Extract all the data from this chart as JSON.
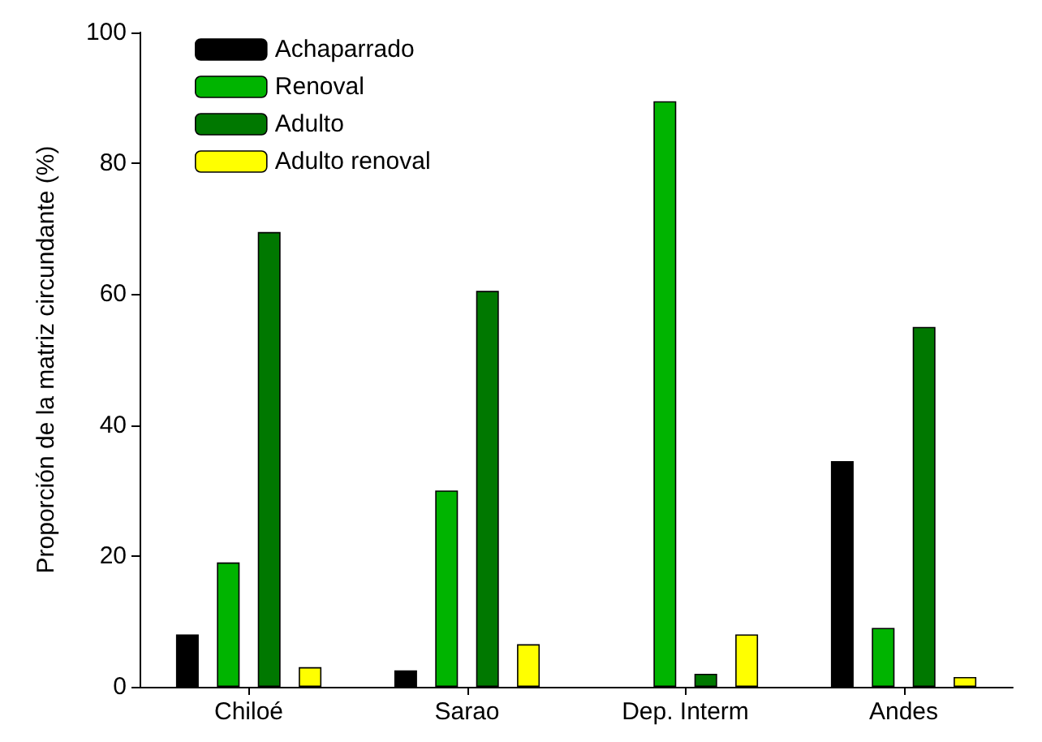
{
  "chart_data": {
    "type": "bar",
    "ylabel": "Proporción de la matriz circundante (%)",
    "categories": [
      "Chiloé",
      "Sarao",
      "Dep. Interm",
      "Andes"
    ],
    "series": [
      {
        "name": "Achaparrado",
        "color": "#000000",
        "values": [
          8,
          2.5,
          null,
          34.5
        ]
      },
      {
        "name": "Renoval",
        "color": "#00b400",
        "values": [
          19,
          30,
          89.5,
          9
        ]
      },
      {
        "name": "Adulto",
        "color": "#007800",
        "values": [
          69.5,
          60.5,
          2,
          55
        ]
      },
      {
        "name": "Adulto renoval",
        "color": "#ffff00",
        "values": [
          3,
          6.5,
          8,
          1.5
        ]
      }
    ],
    "ylim": [
      0,
      100
    ],
    "yticks": [
      0,
      20,
      40,
      60,
      80,
      100
    ],
    "grid": false,
    "legend": "top left"
  }
}
